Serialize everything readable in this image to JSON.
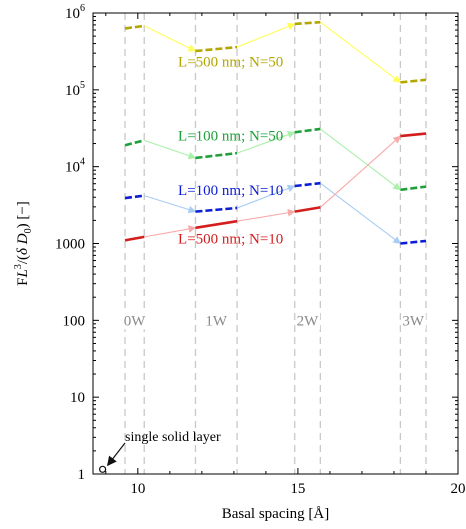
{
  "chart_data": {
    "type": "line",
    "xlabel": "Basal spacing [Å]",
    "ylabel_parts": [
      "F",
      "L",
      "3",
      "/(",
      "δ",
      " D",
      "0",
      ") [−]"
    ],
    "xlim": [
      8.6,
      20
    ],
    "ylim_log10": [
      0,
      6
    ],
    "y_scale": "log",
    "x_ticks": [
      10,
      15,
      20
    ],
    "x_tick_labels": [
      "10",
      "15",
      "20"
    ],
    "y_ticks": [
      {
        "value": 1,
        "label": "1"
      },
      {
        "value": 10,
        "label": "10"
      },
      {
        "value": 100,
        "label": "100"
      },
      {
        "value": 1000,
        "label": "1000"
      },
      {
        "value": 10000,
        "label": "10",
        "exp": "4"
      },
      {
        "value": 100000,
        "label": "10",
        "exp": "5"
      },
      {
        "value": 1000000,
        "label": "10",
        "exp": "6"
      }
    ],
    "grid": false,
    "water_regions": [
      {
        "label": "0W",
        "x_from": 9.6,
        "x_to": 10.2
      },
      {
        "label": "1W",
        "x_from": 11.8,
        "x_to": 13.1
      },
      {
        "label": "2W",
        "x_from": 14.9,
        "x_to": 15.7
      },
      {
        "label": "3W",
        "x_from": 18.2,
        "x_to": 19.0
      }
    ],
    "series": [
      {
        "name": "L=500 nm; N=50",
        "color": "#b3a600",
        "arrow_color": "#ffff55",
        "segments": [
          {
            "x": [
              9.6,
              10.2
            ],
            "y": [
              630000,
              680000
            ]
          },
          {
            "x": [
              11.8,
              13.1
            ],
            "y": [
              320000,
              360000
            ]
          },
          {
            "x": [
              14.9,
              15.7
            ],
            "y": [
              720000,
              760000
            ]
          },
          {
            "x": [
              18.2,
              19.0
            ],
            "y": [
              125000,
              135000
            ]
          }
        ]
      },
      {
        "name": "L=100 nm; N=50",
        "color": "#1fa03a",
        "arrow_color": "#aaf0aa",
        "segments": [
          {
            "x": [
              9.6,
              10.2
            ],
            "y": [
              19000,
              22000
            ]
          },
          {
            "x": [
              11.8,
              13.1
            ],
            "y": [
              13000,
              15000
            ]
          },
          {
            "x": [
              14.9,
              15.7
            ],
            "y": [
              28000,
              31000
            ]
          },
          {
            "x": [
              18.2,
              19.0
            ],
            "y": [
              5000,
              5500
            ]
          }
        ]
      },
      {
        "name": "L=100 nm; N=10",
        "color": "#0b1ed6",
        "arrow_color": "#a8ccf4",
        "segments": [
          {
            "x": [
              9.6,
              10.2
            ],
            "y": [
              3900,
              4200
            ]
          },
          {
            "x": [
              11.8,
              13.1
            ],
            "y": [
              2600,
              2900
            ]
          },
          {
            "x": [
              14.9,
              15.7
            ],
            "y": [
              5600,
              6100
            ]
          },
          {
            "x": [
              18.2,
              19.0
            ],
            "y": [
              1000,
              1080
            ]
          }
        ]
      },
      {
        "name": "L=500 nm; N=10",
        "color": "#d41e1e",
        "arrow_color": "#f8aaaa",
        "segments": [
          {
            "x": [
              9.6,
              10.2
            ],
            "y": [
              1100,
              1220
            ]
          },
          {
            "x": [
              11.8,
              13.1
            ],
            "y": [
              1600,
              1950
            ]
          },
          {
            "x": [
              14.9,
              15.7
            ],
            "y": [
              2600,
              2950
            ]
          },
          {
            "x": [
              18.2,
              19.0
            ],
            "y": [
              25000,
              27000
            ]
          }
        ]
      }
    ],
    "single_layer": {
      "x": 8.9,
      "y": 1.15,
      "label": "single solid layer"
    },
    "series_labels": [
      {
        "text": "L=500 nm; N=50",
        "x": 12.9,
        "y": 200000,
        "color": "#b3a600"
      },
      {
        "text": "L=100 nm; N=50",
        "x": 12.9,
        "y": 22000,
        "color": "#1fa03a"
      },
      {
        "text": "L=100 nm; N=10",
        "x": 12.9,
        "y": 4300,
        "color": "#0b1ed6"
      },
      {
        "text": "L=500 nm; N=10",
        "x": 12.9,
        "y": 1000,
        "color": "#d41e1e"
      }
    ]
  }
}
